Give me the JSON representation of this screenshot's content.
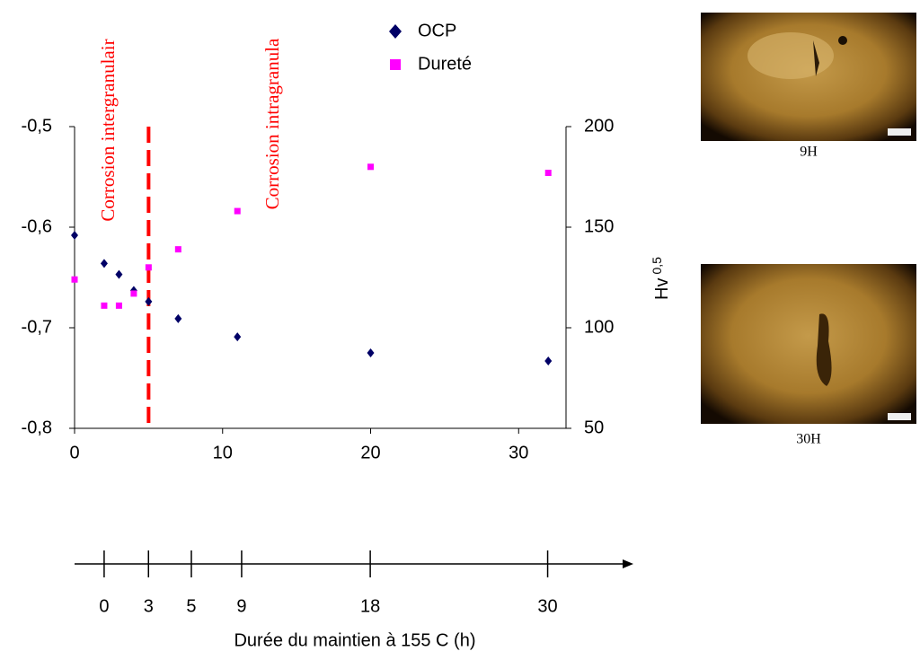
{
  "chart_data": [
    {
      "type": "scatter",
      "xlim": [
        0,
        33.2
      ],
      "xticks": [
        0,
        10,
        20,
        30
      ],
      "ylim": [
        -0.8,
        -0.5
      ],
      "yticks": [
        {
          "value": -0.8,
          "label": "-0,8"
        },
        {
          "value": -0.7,
          "label": "-0,7"
        },
        {
          "value": -0.6,
          "label": "-0,6"
        },
        {
          "value": -0.5,
          "label": "-0,5"
        }
      ],
      "y2lim": [
        50,
        200
      ],
      "y2ticks": [
        50,
        100,
        150,
        200
      ],
      "y2label": "Hv",
      "y2label_sub": "0,5",
      "vline": 5,
      "vline_color": "#ff0000",
      "annotations": [
        "Corrosion intergranulair",
        "Corrosion intragranula"
      ],
      "series": [
        {
          "name": "OCP",
          "color": "#000066",
          "marker": "diamond",
          "x": [
            0,
            2,
            3,
            4,
            5,
            7,
            11,
            20,
            32
          ],
          "values": [
            -0.608,
            -0.636,
            -0.647,
            -0.663,
            -0.674,
            -0.691,
            -0.709,
            -0.725,
            -0.733
          ]
        },
        {
          "name": "Dureté",
          "color": "#ff00ff",
          "marker": "square",
          "axis": "y2",
          "x": [
            0,
            2,
            3,
            4,
            5,
            7,
            11,
            20,
            32
          ],
          "values": [
            124,
            111,
            111,
            117,
            130,
            139,
            158,
            180,
            177
          ]
        }
      ]
    },
    {
      "type": "timeline",
      "xlim": [
        0,
        37.8
      ],
      "xticks": [
        {
          "value": 2,
          "label": "0"
        },
        {
          "value": 5,
          "label": "3"
        },
        {
          "value": 7.9,
          "label": "5"
        },
        {
          "value": 11.3,
          "label": "9"
        },
        {
          "value": 20,
          "label": "18"
        },
        {
          "value": 32,
          "label": "30"
        }
      ],
      "xlabel": "Durée du maintien à 155  C (h)"
    }
  ],
  "images": [
    {
      "caption": "9H"
    },
    {
      "caption": "30H"
    }
  ]
}
